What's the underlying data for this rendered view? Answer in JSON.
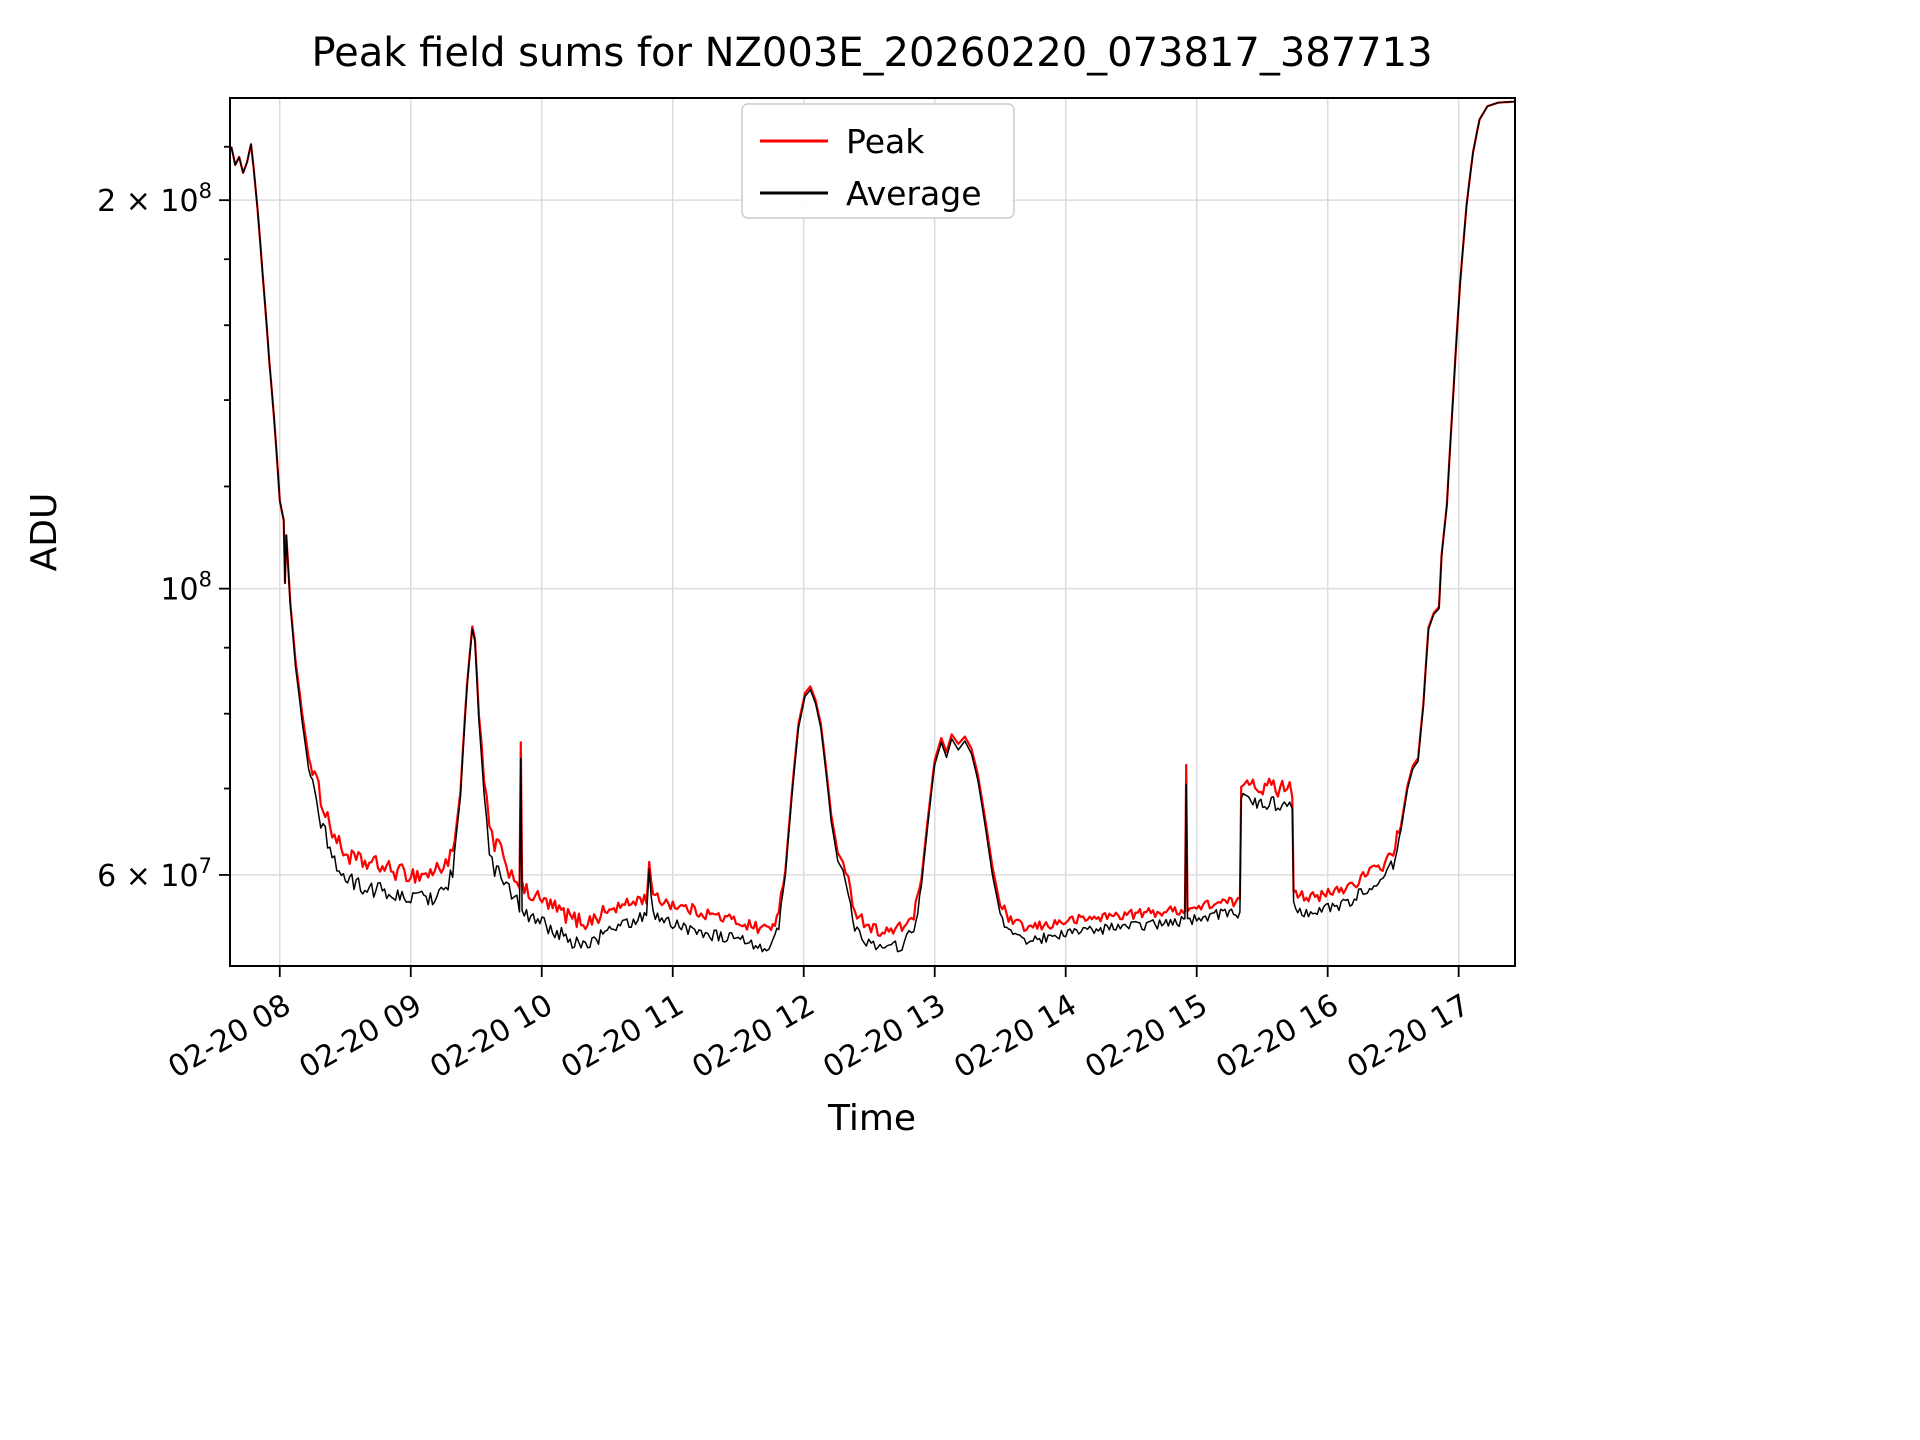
{
  "chart_data": {
    "type": "line",
    "title": "Peak field sums for NZ003E_20260220_073817_387713",
    "xlabel": "Time",
    "ylabel": "ADU",
    "legend": {
      "position": "upper center",
      "entries": [
        "Peak",
        "Average"
      ]
    },
    "x_axis": {
      "lim": [
        7.62,
        17.43
      ],
      "ticks": [
        {
          "value": 8,
          "label": "02-20 08"
        },
        {
          "value": 9,
          "label": "02-20 09"
        },
        {
          "value": 10,
          "label": "02-20 10"
        },
        {
          "value": 11,
          "label": "02-20 11"
        },
        {
          "value": 12,
          "label": "02-20 12"
        },
        {
          "value": 13,
          "label": "02-20 13"
        },
        {
          "value": 14,
          "label": "02-20 14"
        },
        {
          "value": 15,
          "label": "02-20 15"
        },
        {
          "value": 16,
          "label": "02-20 16"
        },
        {
          "value": 17,
          "label": "02-20 17"
        }
      ]
    },
    "y_axis": {
      "scale": "log",
      "lim": [
        51000000,
        240000000
      ],
      "major_ticks": [
        {
          "value": 200000000,
          "coef": "2 × 10",
          "exp": "8"
        },
        {
          "value": 100000000,
          "coef": "10",
          "exp": "8"
        },
        {
          "value": 60000000,
          "coef": "6 × 10",
          "exp": "7"
        }
      ],
      "minor_ticks": [
        70000000,
        80000000,
        90000000,
        120000000,
        140000000,
        160000000,
        180000000,
        220000000
      ]
    },
    "grid": true,
    "value_scale": 1000000,
    "x": [
      7.63,
      7.66,
      7.69,
      7.72,
      7.75,
      7.78,
      7.8,
      7.83,
      7.87,
      7.92,
      7.97,
      8.0,
      8.03,
      8.04,
      8.05,
      8.08,
      8.12,
      8.17,
      8.22,
      8.28,
      8.33,
      8.4,
      8.47,
      8.55,
      8.65,
      8.75,
      8.85,
      8.95,
      9.05,
      9.15,
      9.25,
      9.32,
      9.38,
      9.43,
      9.47,
      9.49,
      9.52,
      9.56,
      9.6,
      9.64,
      9.67,
      9.71,
      9.75,
      9.79,
      9.83,
      9.84,
      9.85,
      9.9,
      9.97,
      10.05,
      10.15,
      10.25,
      10.35,
      10.45,
      10.55,
      10.65,
      10.75,
      10.8,
      10.82,
      10.85,
      10.95,
      11.05,
      11.2,
      11.35,
      11.5,
      11.65,
      11.75,
      11.81,
      11.86,
      11.91,
      11.96,
      12.01,
      12.05,
      12.09,
      12.13,
      12.17,
      12.21,
      12.26,
      12.3,
      12.34,
      12.39,
      12.46,
      12.55,
      12.65,
      12.75,
      12.84,
      12.9,
      12.95,
      13.0,
      13.05,
      13.09,
      13.13,
      13.18,
      13.23,
      13.28,
      13.33,
      13.38,
      13.44,
      13.5,
      13.58,
      13.7,
      13.85,
      14.0,
      14.2,
      14.4,
      14.6,
      14.8,
      14.9,
      14.91,
      14.92,
      14.93,
      15.0,
      15.1,
      15.25,
      15.33,
      15.34,
      15.4,
      15.46,
      15.52,
      15.57,
      15.62,
      15.67,
      15.71,
      15.73,
      15.74,
      15.82,
      15.92,
      16.02,
      16.12,
      16.22,
      16.32,
      16.42,
      16.5,
      16.56,
      16.61,
      16.65,
      16.69,
      16.73,
      16.77,
      16.81,
      16.85,
      16.87,
      16.91,
      16.96,
      17.01,
      17.06,
      17.11,
      17.16,
      17.22,
      17.3,
      17.43
    ],
    "noise_regions": [
      {
        "t0": 8.25,
        "t1": 9.33,
        "amp": 0.016
      },
      {
        "t0": 9.54,
        "t1": 10.5,
        "amp": 0.015
      },
      {
        "t0": 10.5,
        "t1": 11.83,
        "amp": 0.011
      },
      {
        "t0": 12.33,
        "t1": 12.88,
        "amp": 0.011
      },
      {
        "t0": 13.52,
        "t1": 14.9,
        "amp": 0.009
      },
      {
        "t0": 14.94,
        "t1": 15.33,
        "amp": 0.009
      },
      {
        "t0": 15.35,
        "t1": 15.72,
        "amp": 0.013
      },
      {
        "t0": 15.75,
        "t1": 16.53,
        "amp": 0.011
      }
    ],
    "series": [
      {
        "name": "Peak",
        "color": "#ff0000",
        "line_width": 2.2,
        "noise_bias": 0.5,
        "values": [
          220,
          213,
          216,
          210,
          214,
          221,
          212,
          197,
          175,
          150,
          130,
          117,
          113,
          101,
          110,
          97.5,
          88,
          80.2,
          74,
          70.2,
          67.5,
          64.4,
          62.3,
          61.3,
          60.8,
          60.6,
          60,
          59.7,
          59.5,
          59.7,
          60.6,
          61.7,
          69.7,
          84.4,
          93.5,
          91.5,
          79.8,
          70.4,
          64.8,
          62.7,
          63.2,
          60.7,
          60.1,
          59.4,
          58.8,
          75,
          58.1,
          57.6,
          57.1,
          56.5,
          55.7,
          55,
          54.7,
          55.5,
          56.2,
          56.6,
          57.2,
          57.1,
          61.4,
          57.3,
          56.9,
          56.4,
          55.9,
          55.4,
          54.9,
          54.3,
          54.3,
          55.6,
          60.5,
          69.6,
          78.6,
          83,
          84,
          82,
          78.6,
          72.7,
          66.8,
          62.4,
          61.4,
          59,
          56.1,
          54.9,
          54.1,
          53.9,
          54.3,
          55.5,
          59.7,
          66.7,
          73.6,
          76.6,
          74.7,
          77.1,
          75.8,
          76.8,
          75.2,
          71.7,
          66.8,
          60.9,
          56.8,
          55,
          54.3,
          54.6,
          55,
          55.3,
          55.6,
          55.8,
          56,
          56.2,
          56.2,
          73,
          56.2,
          56.3,
          56.7,
          56.9,
          56.9,
          70.2,
          70.9,
          69.9,
          69.4,
          70.2,
          69.4,
          69.9,
          70.4,
          68.9,
          58.2,
          57.5,
          57.2,
          57.8,
          58.2,
          59,
          59.9,
          60.7,
          62.2,
          65.5,
          70.4,
          72.9,
          73.9,
          81.3,
          93.3,
          95.8,
          96.8,
          106.2,
          116.2,
          142.1,
          172,
          198,
          218,
          231,
          236.5,
          238,
          238.5
        ]
      },
      {
        "name": "Average",
        "color": "#000000",
        "line_width": 1.5,
        "noise_bias": -0.35,
        "values": [
          220,
          213,
          216,
          210,
          214,
          221,
          212,
          197,
          175,
          150,
          130,
          117,
          113,
          101,
          110,
          97,
          87,
          79,
          72.5,
          68.5,
          65.5,
          62.5,
          60.5,
          59.5,
          59,
          58.8,
          58.2,
          58,
          57.8,
          58,
          58.8,
          60.5,
          69,
          84,
          93,
          91,
          79,
          69,
          63,
          61,
          61.5,
          59,
          58.5,
          57.8,
          57.2,
          73.5,
          56.5,
          56,
          55.5,
          55,
          54.2,
          53.5,
          53.2,
          54,
          54.8,
          55.2,
          55.8,
          56,
          60.8,
          56.2,
          55.5,
          55,
          54.5,
          54,
          53.6,
          53,
          53.2,
          55,
          60,
          69,
          78,
          82.5,
          83.5,
          81.5,
          78,
          72,
          66,
          61.5,
          60.5,
          58,
          55,
          53.8,
          53,
          52.8,
          53.2,
          54.5,
          59,
          66,
          73,
          76,
          74,
          76.5,
          75,
          76.2,
          74.5,
          71,
          66,
          60,
          56,
          54.2,
          53.5,
          53.8,
          54.2,
          54.5,
          54.8,
          55,
          55.2,
          55.5,
          55.5,
          70.5,
          55.5,
          55.6,
          56,
          56.2,
          56.2,
          68.8,
          69.5,
          68.5,
          68,
          68.8,
          68,
          68.5,
          69,
          67.5,
          57.2,
          56.5,
          56.2,
          56.8,
          57.2,
          58,
          58.8,
          59.8,
          61.5,
          65,
          70,
          72.5,
          73.5,
          81,
          93,
          95.5,
          96.5,
          106,
          116,
          142,
          172,
          198,
          218,
          231,
          236.5,
          238,
          238.5
        ]
      }
    ]
  }
}
